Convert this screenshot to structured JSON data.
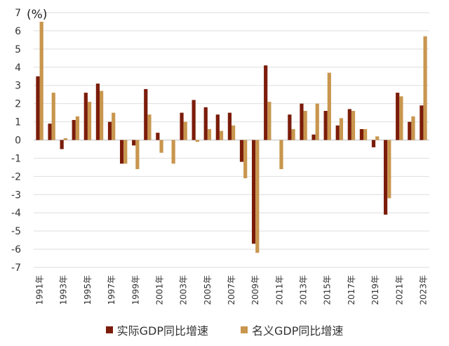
{
  "chart_data": {
    "type": "bar",
    "unit_label": "(%)",
    "ylim": [
      -7,
      7
    ],
    "yticks": [
      -7,
      -6,
      -5,
      -4,
      -3,
      -2,
      -1,
      0,
      1,
      2,
      3,
      4,
      5,
      6,
      7
    ],
    "grid": true,
    "legend_position": "bottom",
    "categories": [
      "1991年",
      "1992年",
      "1993年",
      "1994年",
      "1995年",
      "1996年",
      "1997年",
      "1998年",
      "1999年",
      "2000年",
      "2001年",
      "2002年",
      "2003年",
      "2004年",
      "2005年",
      "2006年",
      "2007年",
      "2008年",
      "2009年",
      "2010年",
      "2011年",
      "2012年",
      "2013年",
      "2014年",
      "2015年",
      "2016年",
      "2017年",
      "2018年",
      "2019年",
      "2020年",
      "2021年",
      "2022年",
      "2023年"
    ],
    "tick_labels_shown": [
      "1991年",
      "1993年",
      "1995年",
      "1997年",
      "1999年",
      "2001年",
      "2003年",
      "2005年",
      "2007年",
      "2009年",
      "2011年",
      "2013年",
      "2015年",
      "2017年",
      "2019年",
      "2021年",
      "2023年"
    ],
    "series": [
      {
        "name": "实际GDP同比增速",
        "color": "#7b1c0a",
        "values": [
          3.5,
          0.9,
          -0.5,
          1.1,
          2.6,
          3.1,
          1.0,
          -1.3,
          -0.3,
          2.8,
          0.4,
          0.0,
          1.5,
          2.2,
          1.8,
          1.4,
          1.5,
          -1.2,
          -5.7,
          4.1,
          0.0,
          1.4,
          2.0,
          0.3,
          1.6,
          0.8,
          1.7,
          0.6,
          -0.4,
          -4.1,
          2.6,
          1.0,
          1.9
        ]
      },
      {
        "name": "名义GDP同比增速",
        "color": "#c8964e",
        "values": [
          6.5,
          2.6,
          0.1,
          1.3,
          2.1,
          2.7,
          1.5,
          -1.3,
          -1.6,
          1.4,
          -0.7,
          -1.3,
          1.0,
          -0.1,
          0.6,
          0.5,
          0.8,
          -2.1,
          -6.2,
          2.1,
          -1.6,
          0.6,
          1.6,
          2.0,
          3.7,
          1.2,
          1.6,
          0.6,
          0.2,
          -3.2,
          2.4,
          1.3,
          5.7
        ]
      }
    ]
  }
}
